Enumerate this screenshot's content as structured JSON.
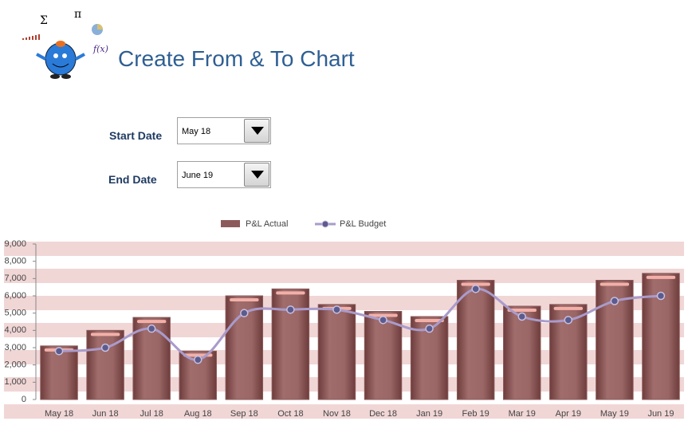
{
  "header": {
    "title": "Create From & To Chart"
  },
  "controls": {
    "start_label": "Start Date",
    "start_value": "May 18",
    "end_label": "End Date",
    "end_value": "June 19"
  },
  "chart_data": {
    "type": "bar",
    "categories": [
      "May 18",
      "Jun 18",
      "Jul 18",
      "Aug 18",
      "Sep 18",
      "Oct 18",
      "Nov 18",
      "Dec 18",
      "Jan 19",
      "Feb 19",
      "Mar 19",
      "Apr 19",
      "May 19",
      "Jun 19"
    ],
    "series": [
      {
        "name": "P&L Actual",
        "type": "bar",
        "color": "#8c5a5a",
        "values": [
          3100,
          4000,
          4750,
          2800,
          6000,
          6400,
          5500,
          5100,
          4800,
          6900,
          5400,
          5500,
          6900,
          7300
        ]
      },
      {
        "name": "P&L Budget",
        "type": "line",
        "color": "#a99bcb",
        "values": [
          2800,
          3000,
          4100,
          2300,
          5000,
          5200,
          5200,
          4600,
          4100,
          6400,
          4800,
          4600,
          5700,
          6000
        ]
      }
    ],
    "ylim": [
      0,
      9000
    ],
    "yticks": [
      0,
      {
        "value": 1000,
        "label": "1,000"
      },
      {
        "value": 2000,
        "label": "2,000"
      },
      {
        "value": 3000,
        "label": "3,000"
      },
      {
        "value": 4000,
        "label": "4,000"
      },
      {
        "value": 5000,
        "label": "5,000"
      },
      {
        "value": 6000,
        "label": "6,000"
      },
      {
        "value": 7000,
        "label": "7,000"
      },
      {
        "value": 8000,
        "label": "8,000"
      },
      {
        "value": 9000,
        "label": "9,000"
      }
    ],
    "legend": "top"
  }
}
